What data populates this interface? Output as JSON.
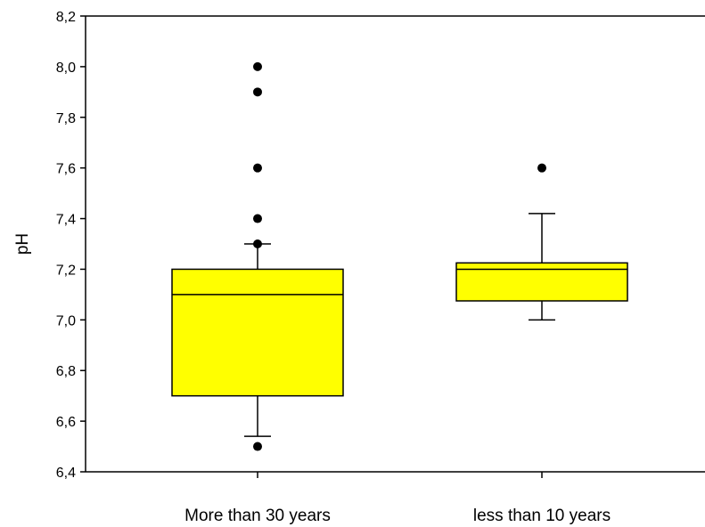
{
  "chart_data": {
    "type": "box",
    "ylabel": "pH",
    "ylim": [
      6.4,
      8.2
    ],
    "y_ticks": [
      6.4,
      6.6,
      6.8,
      7.0,
      7.2,
      7.4,
      7.6,
      7.8,
      8.0,
      8.2
    ],
    "y_tick_labels": [
      "6,4",
      "6,6",
      "6,8",
      "7,0",
      "7,2",
      "7,4",
      "7,6",
      "7,8",
      "8,0",
      "8,2"
    ],
    "categories": [
      "More than 30 years",
      "less than 10 years"
    ],
    "box_color": "#ffff00",
    "boxes": [
      {
        "category": "More than 30 years",
        "whisker_low": 6.54,
        "q1": 6.7,
        "median": 7.1,
        "q3": 7.2,
        "whisker_high": 7.3,
        "outliers": [
          6.5,
          7.3,
          7.4,
          7.6,
          7.9,
          8.0
        ]
      },
      {
        "category": "less than 10 years",
        "whisker_low": 7.0,
        "q1": 7.075,
        "median": 7.2,
        "q3": 7.225,
        "whisker_high": 7.42,
        "outliers": [
          7.6
        ]
      }
    ]
  }
}
